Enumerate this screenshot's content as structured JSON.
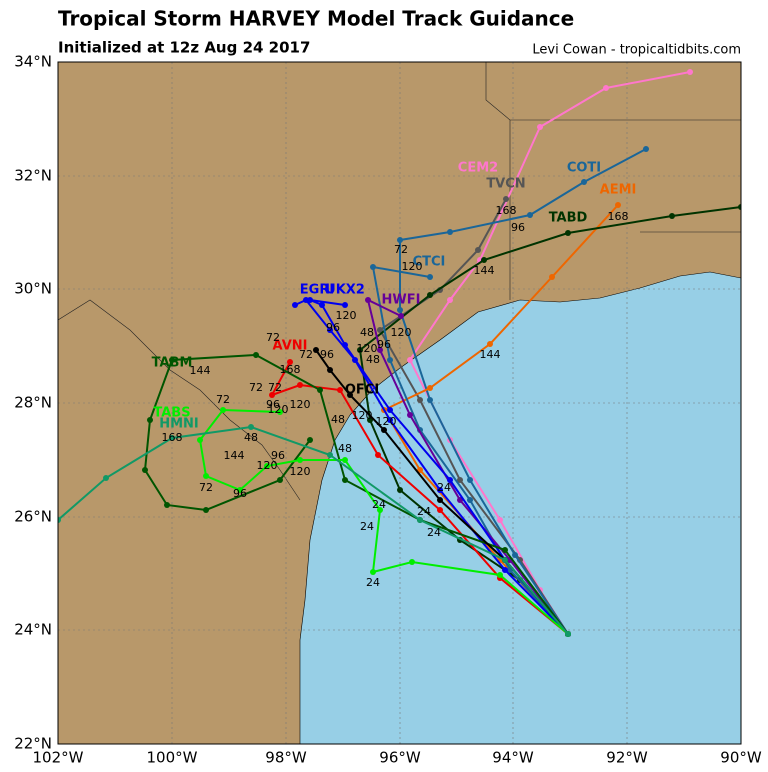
{
  "header": {
    "title": "Tropical Storm HARVEY Model Track Guidance",
    "subtitle": "Initialized at 12z Aug 24 2017",
    "credit": "Levi Cowan - tropicaltidbits.com"
  },
  "lat_labels": [
    "34°N",
    "32°N",
    "30°N",
    "28°N",
    "26°N",
    "24°N",
    "22°N"
  ],
  "lon_labels": [
    "102°W",
    "100°W",
    "98°W",
    "96°W",
    "94°W",
    "92°W",
    "90°W"
  ],
  "models": [
    {
      "name": "CEM2",
      "color": "#ff77cc"
    },
    {
      "name": "TVCN",
      "color": "#555555"
    },
    {
      "name": "COTI",
      "color": "#1a6699"
    },
    {
      "name": "AEMI",
      "color": "#ee6600"
    },
    {
      "name": "TABD",
      "color": "#003300"
    },
    {
      "name": "CTCI",
      "color": "#1a6699"
    },
    {
      "name": "HWFI",
      "color": "#660099"
    },
    {
      "name": "EGRI",
      "color": "#0000ee"
    },
    {
      "name": "UKX2",
      "color": "#0000ee"
    },
    {
      "name": "AVNI",
      "color": "#ee0000"
    },
    {
      "name": "TABM",
      "color": "#005500"
    },
    {
      "name": "OFCI",
      "color": "#000000"
    },
    {
      "name": "TABS",
      "color": "#00ee00"
    },
    {
      "name": "HMNI",
      "color": "#119966"
    }
  ],
  "hour_labels": [
    168,
    96,
    168,
    72,
    120,
    144,
    144,
    120,
    48,
    48,
    120,
    96,
    120,
    96,
    72,
    144,
    72,
    96,
    168,
    72,
    72,
    72,
    120,
    96,
    120,
    120,
    120,
    48,
    48,
    168,
    96,
    144,
    120,
    48,
    120,
    72,
    96,
    24,
    24,
    24,
    24,
    24,
    24
  ]
}
